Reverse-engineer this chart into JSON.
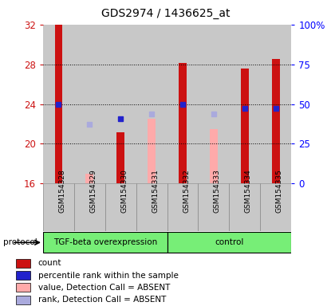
{
  "title": "GDS2974 / 1436625_at",
  "samples": [
    "GSM154328",
    "GSM154329",
    "GSM154330",
    "GSM154331",
    "GSM154332",
    "GSM154333",
    "GSM154334",
    "GSM154335"
  ],
  "red_bar_top": [
    32.0,
    null,
    21.2,
    null,
    28.1,
    null,
    27.6,
    28.5
  ],
  "pink_bar_top": [
    null,
    17.0,
    21.2,
    22.5,
    null,
    21.5,
    null,
    null
  ],
  "blue_square_y": [
    24.0,
    null,
    22.5,
    null,
    24.0,
    null,
    23.6,
    23.6
  ],
  "lblue_square_y": [
    null,
    22.0,
    null,
    23.0,
    null,
    23.0,
    null,
    null
  ],
  "ymin": 16,
  "ymax": 32,
  "yticks_left": [
    16,
    20,
    24,
    28,
    32
  ],
  "yticks_right": [
    0,
    25,
    50,
    75,
    100
  ],
  "group1_label": "TGF-beta overexpression",
  "group2_label": "control",
  "group1_indices": [
    0,
    1,
    2,
    3
  ],
  "group2_indices": [
    4,
    5,
    6,
    7
  ],
  "protocol_label": "protocol",
  "bar_width": 0.25,
  "red_color": "#cc1111",
  "pink_color": "#ffaaaa",
  "blue_color": "#2222cc",
  "lblue_color": "#aaaadd",
  "bg_xaxis": "#c8c8c8",
  "group_bg": "#77ee77",
  "legend_items": [
    "count",
    "percentile rank within the sample",
    "value, Detection Call = ABSENT",
    "rank, Detection Call = ABSENT"
  ]
}
